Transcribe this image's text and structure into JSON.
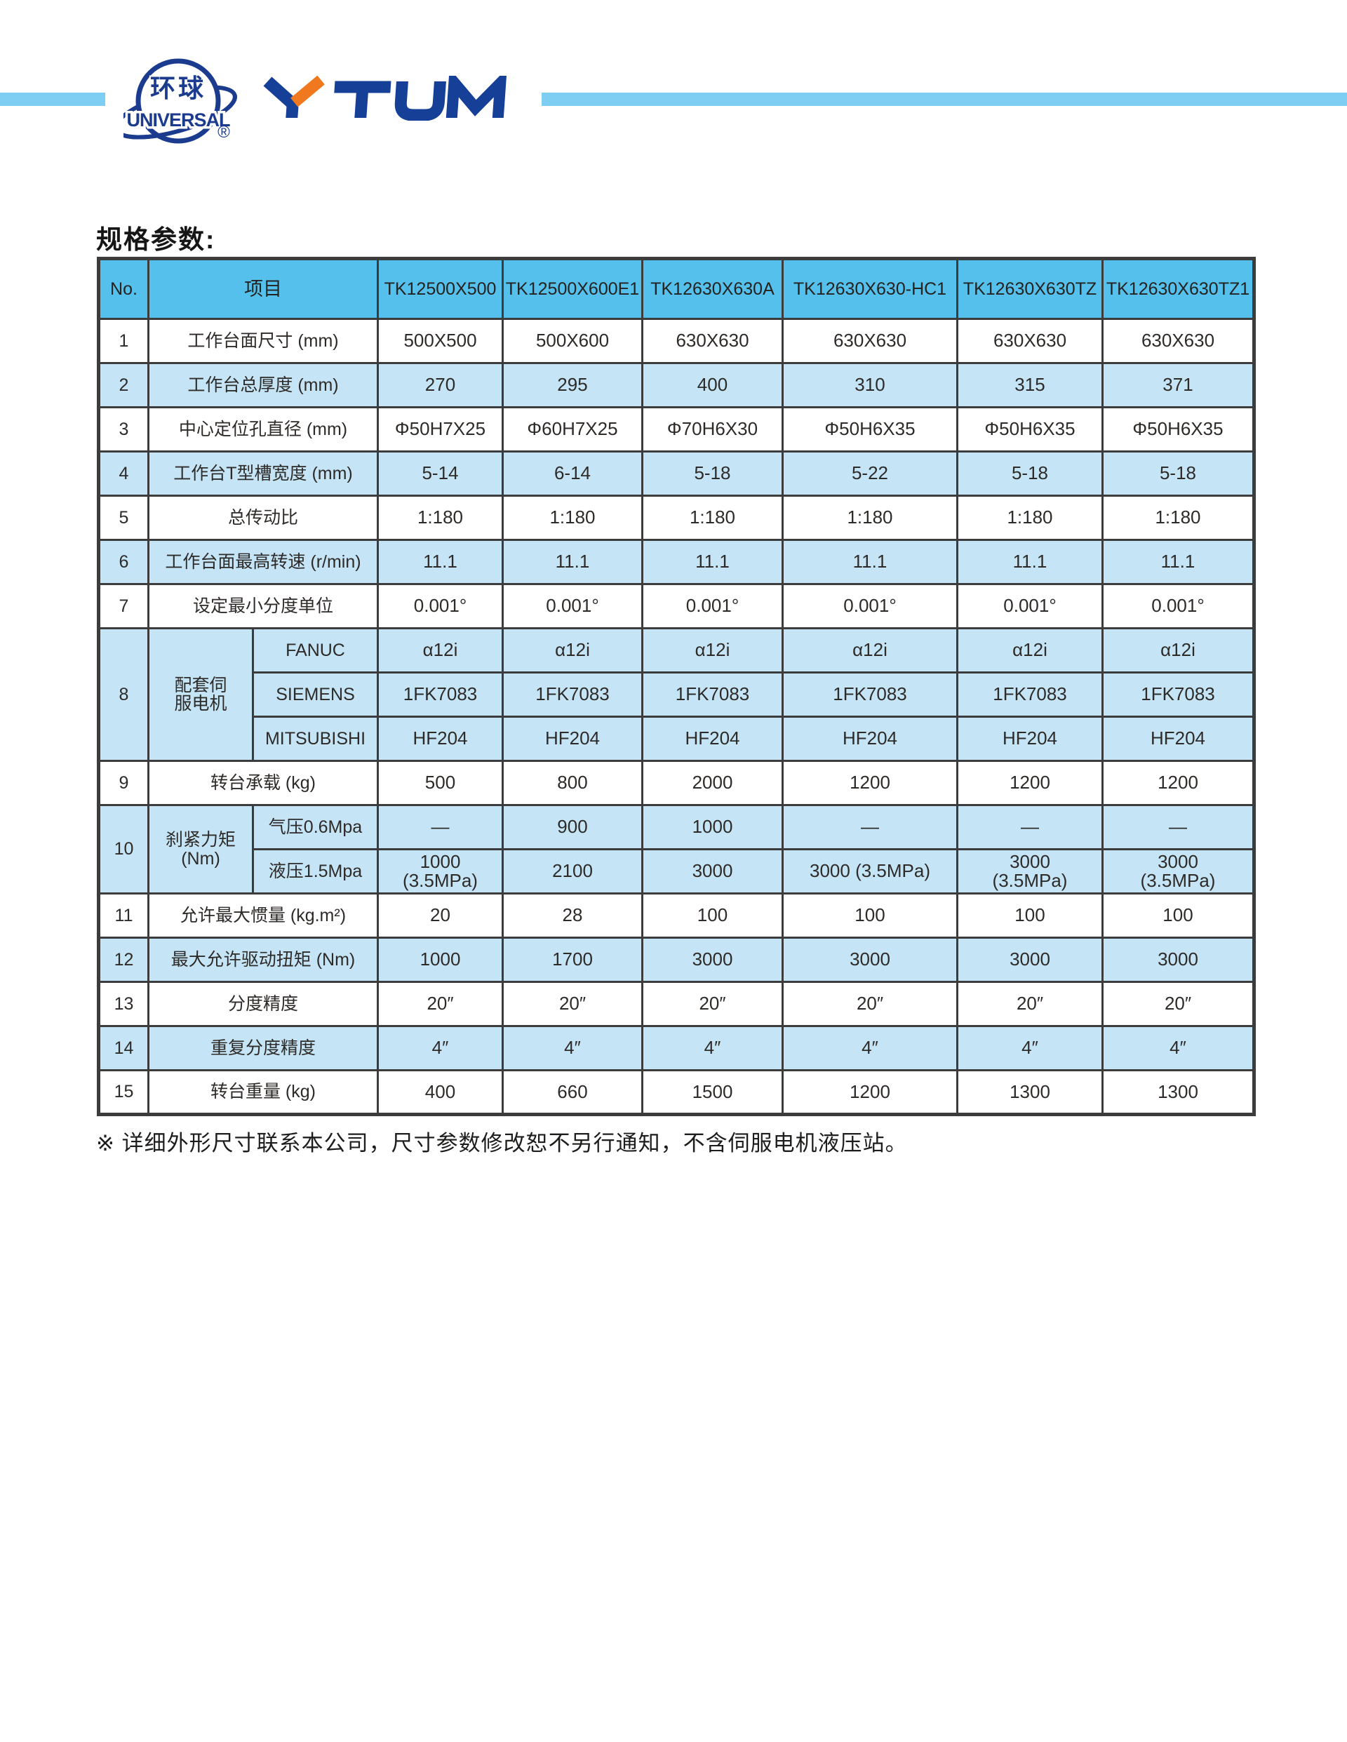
{
  "brand": {
    "logo_cn": "环球",
    "logo_en": "UNIVERSAL",
    "registered": "®",
    "wordmark": "YTUM"
  },
  "colors": {
    "header_blue": "#54c0eb",
    "row_blue": "#c5e5f6",
    "divider_bar_blue": "#7dcef2",
    "brand_blue": "#1a3f96",
    "brand_orange": "#f0791f",
    "table_border": "#3c3c3c"
  },
  "page": {
    "section_title": "规格参数:",
    "footnote": "※ 详细外形尺寸联系本公司，尺寸参数修改恕不另行通知，不含伺服电机液压站。"
  },
  "table": {
    "header": {
      "no": "No.",
      "item": "项目",
      "models": [
        "TK12500X500",
        "TK12500X600E1",
        "TK12630X630A",
        "TK12630X630-HC1",
        "TK12630X630TZ",
        "TK12630X630TZ1"
      ]
    },
    "rows": [
      {
        "no": "1",
        "label": "工作台面尺寸 (mm)",
        "values": [
          "500X500",
          "500X600",
          "630X630",
          "630X630",
          "630X630",
          "630X630"
        ]
      },
      {
        "no": "2",
        "label": "工作台总厚度 (mm)",
        "values": [
          "270",
          "295",
          "400",
          "310",
          "315",
          "371"
        ]
      },
      {
        "no": "3",
        "label": "中心定位孔直径 (mm)",
        "values": [
          "Φ50H7X25",
          "Φ60H7X25",
          "Φ70H6X30",
          "Φ50H6X35",
          "Φ50H6X35",
          "Φ50H6X35"
        ]
      },
      {
        "no": "4",
        "label": "工作台T型槽宽度 (mm)",
        "values": [
          "5-14",
          "6-14",
          "5-18",
          "5-22",
          "5-18",
          "5-18"
        ]
      },
      {
        "no": "5",
        "label": "总传动比",
        "values": [
          "1:180",
          "1:180",
          "1:180",
          "1:180",
          "1:180",
          "1:180"
        ]
      },
      {
        "no": "6",
        "label": "工作台面最高转速 (r/min)",
        "values": [
          "11.1",
          "11.1",
          "11.1",
          "11.1",
          "11.1",
          "11.1"
        ]
      },
      {
        "no": "7",
        "label": "设定最小分度单位",
        "values": [
          "0.001°",
          "0.001°",
          "0.001°",
          "0.001°",
          "0.001°",
          "0.001°"
        ]
      },
      {
        "no": "8",
        "label": "配套伺\n服电机",
        "subrows": [
          {
            "brand": "FANUC",
            "values": [
              "α12i",
              "α12i",
              "α12i",
              "α12i",
              "α12i",
              "α12i"
            ]
          },
          {
            "brand": "SIEMENS",
            "values": [
              "1FK7083",
              "1FK7083",
              "1FK7083",
              "1FK7083",
              "1FK7083",
              "1FK7083"
            ]
          },
          {
            "brand": "MITSUBISHI",
            "values": [
              "HF204",
              "HF204",
              "HF204",
              "HF204",
              "HF204",
              "HF204"
            ]
          }
        ]
      },
      {
        "no": "9",
        "label": "转台承载 (kg)",
        "values": [
          "500",
          "800",
          "2000",
          "1200",
          "1200",
          "1200"
        ]
      },
      {
        "no": "10",
        "label": "刹紧力矩\n(Nm)",
        "subrows": [
          {
            "brand": "气压0.6Mpa",
            "values": [
              "—",
              "900",
              "1000",
              "—",
              "—",
              "—"
            ]
          },
          {
            "brand": "液压1.5Mpa",
            "values": [
              "1000\n(3.5MPa)",
              "2100",
              "3000",
              "3000 (3.5MPa)",
              "3000\n(3.5MPa)",
              "3000\n(3.5MPa)"
            ]
          }
        ]
      },
      {
        "no": "11",
        "label": "允许最大惯量 (kg.m²)",
        "values": [
          "20",
          "28",
          "100",
          "100",
          "100",
          "100"
        ]
      },
      {
        "no": "12",
        "label": "最大允许驱动扭矩 (Nm)",
        "values": [
          "1000",
          "1700",
          "3000",
          "3000",
          "3000",
          "3000"
        ]
      },
      {
        "no": "13",
        "label": "分度精度",
        "values": [
          "20″",
          "20″",
          "20″",
          "20″",
          "20″",
          "20″"
        ]
      },
      {
        "no": "14",
        "label": "重复分度精度",
        "values": [
          "4″",
          "4″",
          "4″",
          "4″",
          "4″",
          "4″"
        ]
      },
      {
        "no": "15",
        "label": "转台重量 (kg)",
        "values": [
          "400",
          "660",
          "1500",
          "1200",
          "1300",
          "1300"
        ]
      }
    ]
  }
}
